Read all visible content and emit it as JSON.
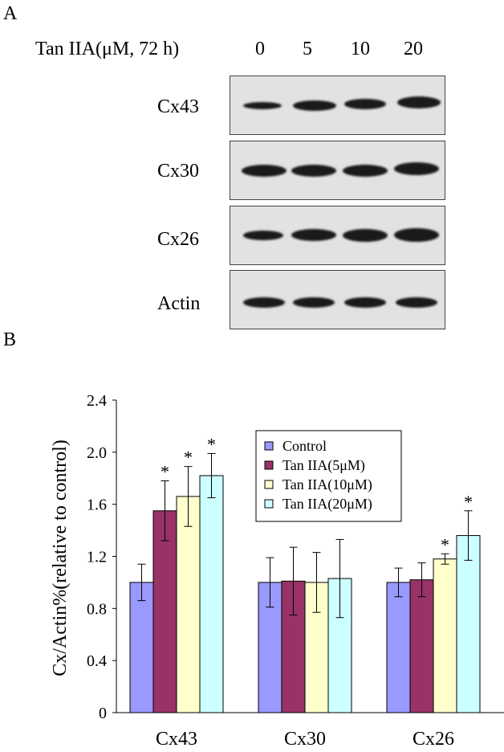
{
  "figure": {
    "panel_a_label": "A",
    "panel_b_label": "B"
  },
  "blot": {
    "treatment_label": "Tan IIA(μM, 72 h)",
    "lanes": [
      "0",
      "5",
      "10",
      "20"
    ],
    "rows": [
      {
        "label": "Cx43",
        "intensities": [
          0.45,
          0.8,
          0.8,
          1.0
        ]
      },
      {
        "label": "Cx30",
        "intensities": [
          0.9,
          0.9,
          0.9,
          0.9
        ]
      },
      {
        "label": "Cx26",
        "intensities": [
          0.75,
          0.9,
          0.95,
          1.0
        ]
      },
      {
        "label": "Actin",
        "intensities": [
          0.8,
          0.8,
          0.8,
          0.8
        ]
      }
    ]
  },
  "chart_data": {
    "type": "bar",
    "categories": [
      "Cx43",
      "Cx30",
      "Cx26"
    ],
    "ylabel": "Cx/Actin%(relative to control)",
    "ylim": [
      0,
      2.4
    ],
    "yticks": [
      "0",
      "0.4",
      "0.8",
      "1.2",
      "1.6",
      "2.0",
      "2.4"
    ],
    "grid": false,
    "legend_position": "top-right",
    "significance_marker": "*",
    "series": [
      {
        "name": "Control",
        "color": "#9999ff",
        "values": [
          1.0,
          1.0,
          1.0
        ],
        "errors": [
          0.14,
          0.19,
          0.11
        ],
        "significant": [
          false,
          false,
          false
        ]
      },
      {
        "name": "Tan IIA(5μM)",
        "color": "#993366",
        "values": [
          1.55,
          1.01,
          1.02
        ],
        "errors": [
          0.23,
          0.26,
          0.13
        ],
        "significant": [
          true,
          false,
          false
        ]
      },
      {
        "name": "Tan IIA(10μM)",
        "color": "#ffffcc",
        "values": [
          1.66,
          1.0,
          1.18
        ],
        "errors": [
          0.23,
          0.23,
          0.04
        ],
        "significant": [
          true,
          false,
          true
        ]
      },
      {
        "name": "Tan IIA(20μM)",
        "color": "#ccffff",
        "values": [
          1.82,
          1.03,
          1.36
        ],
        "errors": [
          0.17,
          0.3,
          0.19
        ],
        "significant": [
          true,
          false,
          true
        ]
      }
    ]
  }
}
